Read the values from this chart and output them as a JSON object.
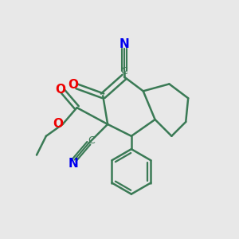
{
  "bg_color": "#e8e8e8",
  "bond_color": "#3a7a55",
  "bond_width": 1.8,
  "atom_colors": {
    "C_label": "#3a7a55",
    "N": "#0000ee",
    "O": "#ee0000"
  },
  "figsize": [
    3.0,
    3.0
  ],
  "dpi": 100
}
